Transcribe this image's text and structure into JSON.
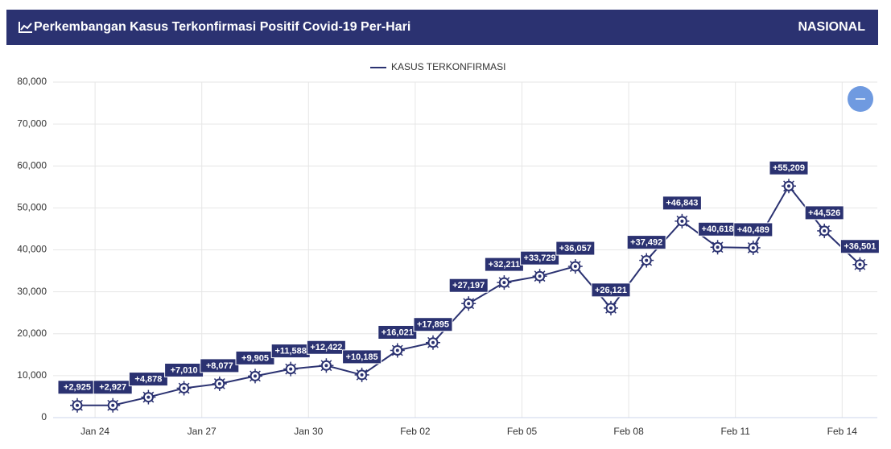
{
  "header": {
    "title": "Perkembangan Kasus Terkonfirmasi Positif Covid-19 Per-Hari",
    "region": "NASIONAL"
  },
  "chart_data": {
    "type": "line",
    "categories": [
      null,
      "Jan 24",
      null,
      null,
      "Jan 27",
      null,
      null,
      "Jan 30",
      null,
      null,
      "Feb 02",
      null,
      null,
      "Feb 05",
      null,
      null,
      "Feb 08",
      null,
      null,
      "Feb 11",
      null,
      null,
      "Feb 14"
    ],
    "series": [
      {
        "name": "KASUS TERKONFIRMASI",
        "color": "#2b3271",
        "values": [
          2925,
          2927,
          4878,
          7010,
          8077,
          9905,
          11588,
          12422,
          10185,
          16021,
          17895,
          27197,
          32211,
          33729,
          36057,
          26121,
          37492,
          46843,
          40618,
          40489,
          55209,
          44526,
          36501
        ],
        "value_labels": [
          "+2,925",
          "+2,927",
          "+4,878",
          "+7,010",
          "+8,077",
          "+9,905",
          "+11,588",
          "+12,422",
          "+10,185",
          "+16,021",
          "+17,895",
          "+27,197",
          "+32,211",
          "+33,729",
          "+36,057",
          "+26,121",
          "+37,492",
          "+46,843",
          "+40,618",
          "+40,489",
          "+55,209",
          "+44,526",
          "+36,501"
        ]
      }
    ],
    "ylim": [
      0,
      80000
    ],
    "yticks": [
      0,
      {
        "value": 10000,
        "label": "10,000"
      },
      {
        "value": 20000,
        "label": "20,000"
      },
      {
        "value": 30000,
        "label": "30,000"
      },
      {
        "value": 40000,
        "label": "40,000"
      },
      {
        "value": 50000,
        "label": "50,000"
      },
      {
        "value": 60000,
        "label": "60,000"
      },
      {
        "value": 70000,
        "label": "70,000"
      },
      {
        "value": 80000,
        "label": "80,000"
      }
    ],
    "grid": true
  }
}
